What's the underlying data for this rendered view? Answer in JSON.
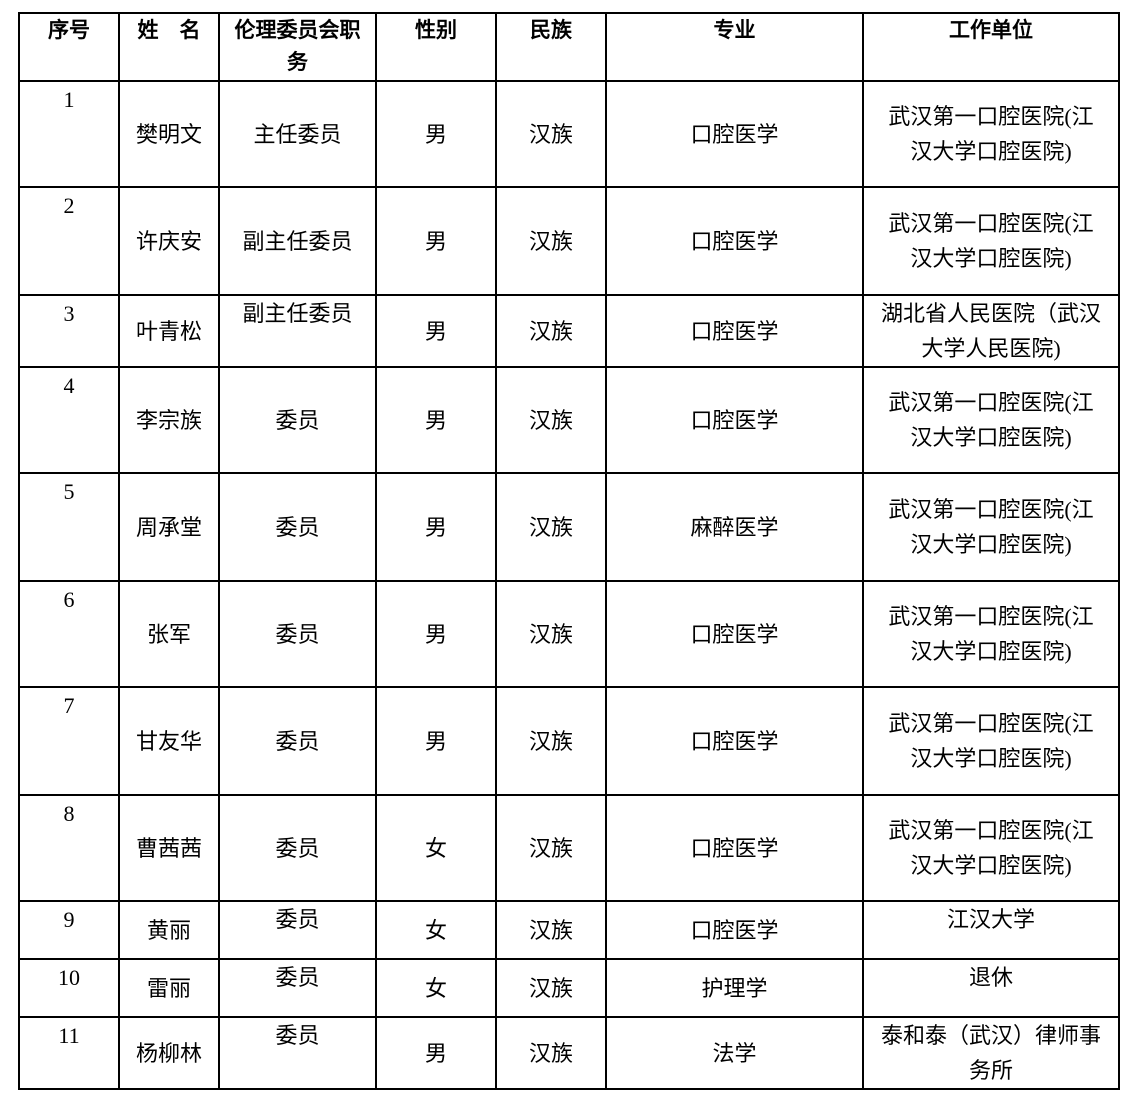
{
  "table": {
    "header": [
      "序号",
      "姓　名",
      "伦理委员会职务",
      "性别",
      "民族",
      "专业",
      "工作单位"
    ],
    "rows": [
      [
        "1",
        "樊明文",
        "主任委员",
        "男",
        "汉族",
        "口腔医学",
        "武汉第一口腔医院(江汉大学口腔医院)"
      ],
      [
        "2",
        "许庆安",
        "副主任委员",
        "男",
        "汉族",
        "口腔医学",
        "武汉第一口腔医院(江汉大学口腔医院)"
      ],
      [
        "3",
        "叶青松",
        "副主任委员",
        "男",
        "汉族",
        "口腔医学",
        "湖北省人民医院（武汉大学人民医院)"
      ],
      [
        "4",
        "李宗族",
        "委员",
        "男",
        "汉族",
        "口腔医学",
        "武汉第一口腔医院(江汉大学口腔医院)"
      ],
      [
        "5",
        "周承堂",
        "委员",
        "男",
        "汉族",
        "麻醉医学",
        "武汉第一口腔医院(江汉大学口腔医院)"
      ],
      [
        "6",
        "张军",
        "委员",
        "男",
        "汉族",
        "口腔医学",
        "武汉第一口腔医院(江汉大学口腔医院)"
      ],
      [
        "7",
        "甘友华",
        "委员",
        "男",
        "汉族",
        "口腔医学",
        "武汉第一口腔医院(江汉大学口腔医院)"
      ],
      [
        "8",
        "曹茜茜",
        "委员",
        "女",
        "汉族",
        "口腔医学",
        "武汉第一口腔医院(江汉大学口腔医院)"
      ],
      [
        "9",
        "黄丽",
        "委员",
        "女",
        "汉族",
        "口腔医学",
        "江汉大学"
      ],
      [
        "10",
        "雷丽",
        "委员",
        "女",
        "汉族",
        "护理学",
        "退休"
      ],
      [
        "11",
        "杨柳林",
        "委员",
        "男",
        "汉族",
        "法学",
        "泰和泰（武汉）律师事务所"
      ]
    ]
  }
}
